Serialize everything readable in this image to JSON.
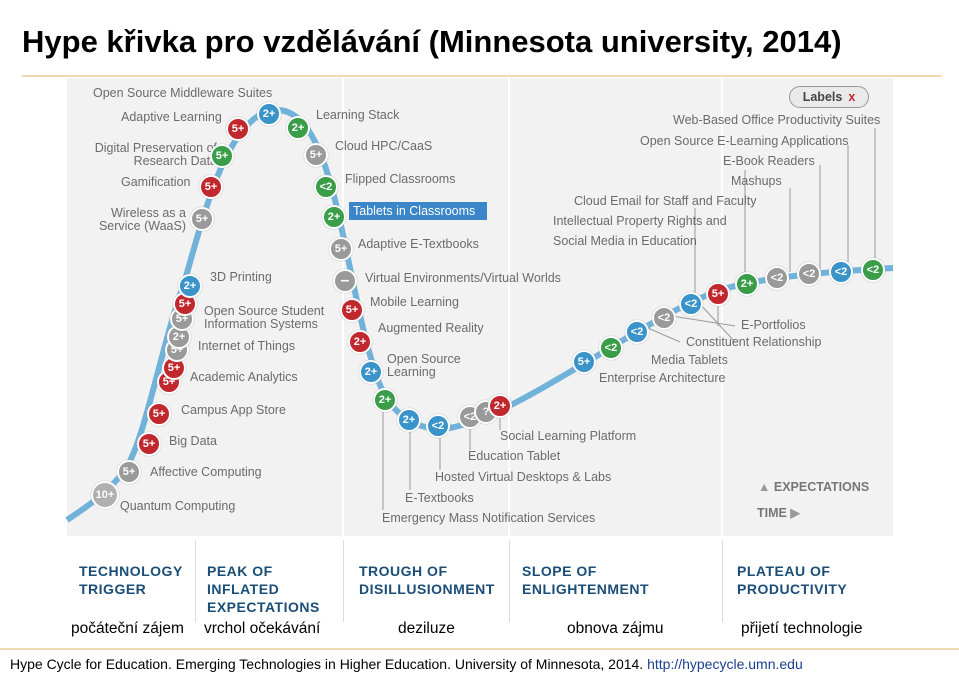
{
  "title": "Hype křivka pro vzdělávání (Minnesota university, 2014)",
  "labels_button": {
    "label": "Labels",
    "close": "x"
  },
  "axes": {
    "expectations": "EXPECTATIONS",
    "time": "TIME"
  },
  "highlighted_item": "Tablets in Classrooms",
  "items": [
    "Open Source Middleware Suites",
    "Adaptive Learning",
    "Digital Preservation of Research Data",
    "Gamification",
    "Wireless as a Service (WaaS)",
    "Learning Stack",
    "Cloud HPC/CaaS",
    "Flipped Classrooms",
    "Tablets in Classrooms",
    "Adaptive E-Textbooks",
    "3D Printing",
    "Open Source Student Information Systems",
    "Internet of Things",
    "Academic Analytics",
    "Campus App Store",
    "Big Data",
    "Affective Computing",
    "Quantum Computing",
    "Virtual Environments/Virtual Worlds",
    "Mobile Learning",
    "Augmented Reality",
    "Open Source Learning",
    "E-Textbooks",
    "Emergency Mass Notification Services",
    "Social Learning Platform",
    "Education Tablet",
    "Hosted Virtual Desktops & Labs",
    "Cloud Email for Staff and Faculty",
    "Intellectual Property Rights and",
    "Social Media in Education",
    "Media Tablets",
    "Enterprise Architecture",
    "E-Portfolios",
    "Constituent Relationship",
    "Web-Based Office Productivity Suites",
    "Open Source E-Learning Applications",
    "E-Book Readers",
    "Mashups"
  ],
  "badges": [
    "10+",
    "5+",
    "5+",
    "5+",
    "5+",
    "5+",
    "5+",
    "2+",
    "5+",
    "5+",
    "2+",
    "5+",
    "5+",
    "5+",
    "5+",
    "2+",
    "2+",
    "5+",
    "–",
    "5+",
    "2+",
    "2+",
    "2+",
    "2+",
    "<2",
    "<2",
    "?",
    "2+",
    "5+",
    "<2",
    "<2",
    "<2",
    "<2",
    "5+",
    "2+",
    "<2",
    "<2",
    "<2",
    "<2",
    "2+",
    "2+",
    "<2",
    "2+",
    "5+",
    "5+",
    "2+",
    "2+",
    "2+",
    "<2"
  ],
  "phases": [
    {
      "en": "TECHNOLOGY\nTRIGGER",
      "cz": "počáteční zájem"
    },
    {
      "en": "PEAK OF\nINFLATED\nEXPECTATIONS",
      "cz": "vrchol očekávání"
    },
    {
      "en": "TROUGH OF\nDISILLUSIONMENT",
      "cz": "deziluze"
    },
    {
      "en": "SLOPE OF\nENLIGHTENMENT",
      "cz": "obnova zájmu"
    },
    {
      "en": "PLATEAU OF\nPRODUCTIVITY",
      "cz": "přijetí technologie"
    }
  ],
  "caption": {
    "text": "Hype Cycle for Education. Emerging Technologies in Higher Education. University of Minnesota, 2014. ",
    "url": "http://hypecycle.umn.edu"
  },
  "colors": {
    "curve": "#5aa7d6",
    "red": "#c0282e",
    "blue": "#3a93c9",
    "green": "#3a9d48",
    "gray": "#9a9a9a",
    "phase_text": "#1a4e78"
  }
}
